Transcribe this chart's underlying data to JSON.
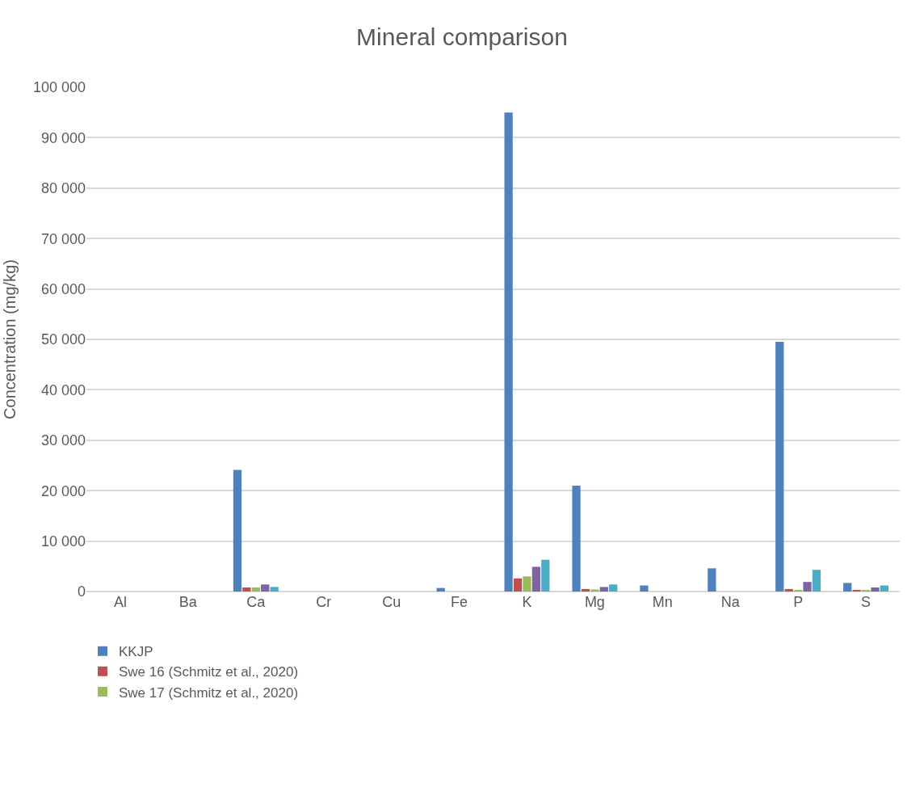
{
  "chart_data": {
    "type": "bar",
    "title": "Mineral comparison",
    "ylabel": "Concentration (mg/kg)",
    "categories": [
      "Al",
      "Ba",
      "Ca",
      "Cr",
      "Cu",
      "Fe",
      "K",
      "Mg",
      "Mn",
      "Na",
      "P",
      "S"
    ],
    "series": [
      {
        "name": "KKJP",
        "color": "#4f81bd",
        "values": [
          null,
          null,
          24100,
          null,
          null,
          700,
          95000,
          21000,
          1200,
          4600,
          49500,
          1700
        ]
      },
      {
        "name": "Swe 16 (Schmitz et al., 2020)",
        "color": "#c0504d",
        "values": [
          null,
          null,
          800,
          null,
          null,
          null,
          2600,
          500,
          null,
          null,
          500,
          300
        ]
      },
      {
        "name": "Swe 17 (Schmitz et al., 2020)",
        "color": "#9bbb59",
        "values": [
          null,
          null,
          800,
          null,
          null,
          null,
          3000,
          400,
          null,
          null,
          300,
          200
        ]
      },
      {
        "color": "#8064a2",
        "values": [
          null,
          null,
          1400,
          null,
          null,
          null,
          4900,
          900,
          null,
          null,
          1900,
          800
        ]
      },
      {
        "color": "#4bacc6",
        "values": [
          null,
          null,
          900,
          null,
          null,
          null,
          6300,
          1400,
          null,
          null,
          4300,
          1200
        ]
      }
    ],
    "ylim": [
      0,
      100000
    ],
    "yticks": [
      {
        "value": 0,
        "label": "0"
      },
      {
        "value": 10000,
        "label": "10 000"
      },
      {
        "value": 20000,
        "label": "20 000"
      },
      {
        "value": 30000,
        "label": "30 000"
      },
      {
        "value": 40000,
        "label": "40 000"
      },
      {
        "value": 50000,
        "label": "50 000"
      },
      {
        "value": 60000,
        "label": "60 000"
      },
      {
        "value": 70000,
        "label": "70 000"
      },
      {
        "value": 80000,
        "label": "80 000"
      },
      {
        "value": 90000,
        "label": "90 000"
      },
      {
        "value": 100000,
        "label": "100 000"
      }
    ],
    "grid": "y",
    "legend": "bottom left"
  }
}
